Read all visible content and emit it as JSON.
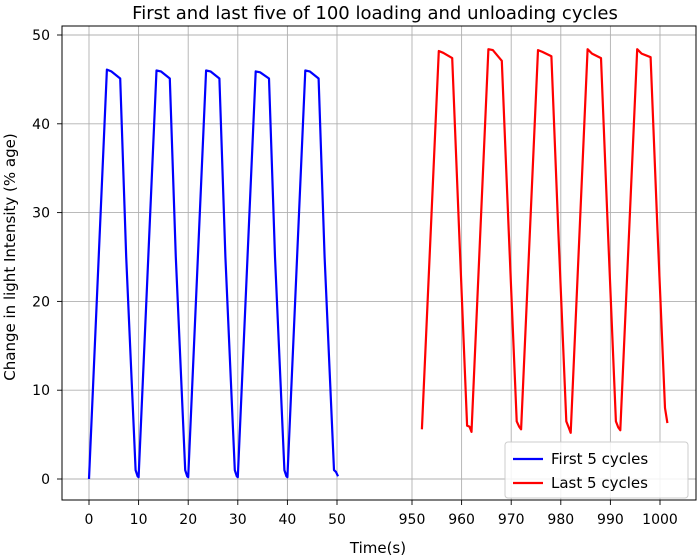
{
  "chart_data": {
    "type": "line",
    "title": "First and last five of 100 loading and unloading cycles",
    "xlabel": "Time(s)",
    "ylabel": "Change in light Intensity (% age)",
    "ylim": [
      0,
      50
    ],
    "yticks": [
      0,
      10,
      20,
      30,
      40,
      50
    ],
    "grid": true,
    "legend_position": "lower-right",
    "panels": [
      {
        "xlim": [
          0,
          50
        ],
        "xticks": [
          0,
          10,
          20,
          30,
          40,
          50
        ]
      },
      {
        "xlim": [
          950,
          1000
        ],
        "xticks": [
          950,
          960,
          970,
          980,
          990,
          1000
        ]
      }
    ],
    "series": [
      {
        "name": "First 5 cycles",
        "color": "#0000ff",
        "panel": 0,
        "points": [
          [
            0,
            0
          ],
          [
            3.6,
            46.1
          ],
          [
            4.5,
            45.9
          ],
          [
            6.3,
            45.1
          ],
          [
            7.5,
            25
          ],
          [
            9.4,
            1
          ],
          [
            9.8,
            0.3
          ],
          [
            10,
            0.2
          ],
          [
            13.6,
            46.0
          ],
          [
            14.5,
            45.9
          ],
          [
            16.3,
            45.1
          ],
          [
            17.5,
            25
          ],
          [
            19.4,
            1
          ],
          [
            19.8,
            0.3
          ],
          [
            20,
            0.2
          ],
          [
            23.6,
            46.0
          ],
          [
            24.5,
            45.9
          ],
          [
            26.3,
            45.1
          ],
          [
            27.5,
            25
          ],
          [
            29.4,
            1
          ],
          [
            29.8,
            0.3
          ],
          [
            30,
            0.2
          ],
          [
            33.6,
            45.9
          ],
          [
            34.5,
            45.8
          ],
          [
            36.3,
            45.1
          ],
          [
            37.5,
            25
          ],
          [
            39.4,
            1
          ],
          [
            39.8,
            0.3
          ],
          [
            40,
            0.2
          ],
          [
            43.6,
            46.0
          ],
          [
            44.5,
            45.9
          ],
          [
            46.3,
            45.1
          ],
          [
            47.5,
            25
          ],
          [
            49.4,
            1
          ],
          [
            49.8,
            0.8
          ],
          [
            50.2,
            0.3
          ]
        ]
      },
      {
        "name": "Last 5 cycles",
        "color": "#ff0000",
        "panel": 1,
        "points": [
          [
            952,
            5.6
          ],
          [
            955.4,
            48.2
          ],
          [
            956.3,
            48.0
          ],
          [
            958.1,
            47.4
          ],
          [
            959.5,
            28
          ],
          [
            961.1,
            6
          ],
          [
            961.6,
            5.9
          ],
          [
            962,
            5.3
          ],
          [
            965.4,
            48.4
          ],
          [
            966.3,
            48.3
          ],
          [
            968.1,
            47.1
          ],
          [
            969.5,
            28
          ],
          [
            971.1,
            6.5
          ],
          [
            971.6,
            5.9
          ],
          [
            972,
            5.6
          ],
          [
            975.4,
            48.3
          ],
          [
            976.3,
            48.1
          ],
          [
            978.1,
            47.6
          ],
          [
            979.5,
            28
          ],
          [
            981.1,
            6.5
          ],
          [
            981.6,
            5.8
          ],
          [
            982,
            5.2
          ],
          [
            985.4,
            48.4
          ],
          [
            986.3,
            47.9
          ],
          [
            988.1,
            47.4
          ],
          [
            989.5,
            28
          ],
          [
            991.1,
            6.5
          ],
          [
            991.6,
            5.8
          ],
          [
            992,
            5.5
          ],
          [
            995.4,
            48.4
          ],
          [
            996.3,
            47.9
          ],
          [
            998.1,
            47.5
          ],
          [
            999.5,
            28
          ],
          [
            1001,
            8
          ],
          [
            1001.5,
            6.3
          ]
        ]
      }
    ]
  }
}
